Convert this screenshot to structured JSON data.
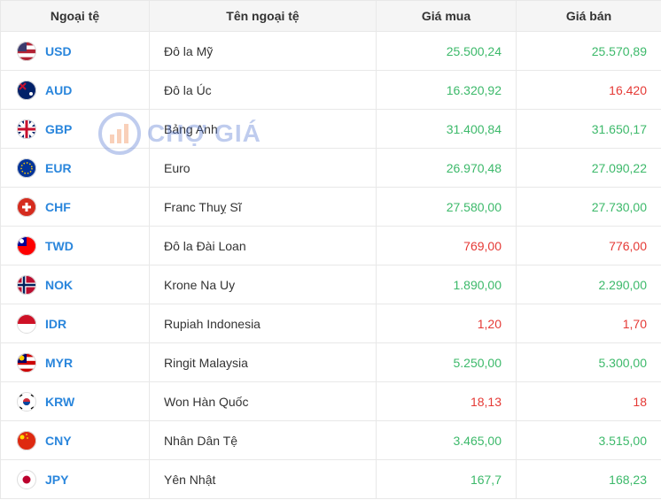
{
  "watermark": "CHỢ GIÁ",
  "table": {
    "header": [
      "Ngoại tệ",
      "Tên ngoại tệ",
      "Giá mua",
      "Giá bán"
    ],
    "rows": [
      {
        "code": "USD",
        "name": "Đô la Mỹ",
        "buy": "25.500,24",
        "sell": "25.570,89",
        "buy_color": "#3cb96a",
        "sell_color": "#3cb96a"
      },
      {
        "code": "AUD",
        "name": "Đô la Úc",
        "buy": "16.320,92",
        "sell": "16.420",
        "buy_color": "#3cb96a",
        "sell_color": "#e53935"
      },
      {
        "code": "GBP",
        "name": "Bảng Anh",
        "buy": "31.400,84",
        "sell": "31.650,17",
        "buy_color": "#3cb96a",
        "sell_color": "#3cb96a"
      },
      {
        "code": "EUR",
        "name": "Euro",
        "buy": "26.970,48",
        "sell": "27.090,22",
        "buy_color": "#3cb96a",
        "sell_color": "#3cb96a"
      },
      {
        "code": "CHF",
        "name": "Franc Thuỵ Sĩ",
        "buy": "27.580,00",
        "sell": "27.730,00",
        "buy_color": "#3cb96a",
        "sell_color": "#3cb96a"
      },
      {
        "code": "TWD",
        "name": "Đô la Đài Loan",
        "buy": "769,00",
        "sell": "776,00",
        "buy_color": "#e53935",
        "sell_color": "#e53935"
      },
      {
        "code": "NOK",
        "name": "Krone Na Uy",
        "buy": "1.890,00",
        "sell": "2.290,00",
        "buy_color": "#3cb96a",
        "sell_color": "#3cb96a"
      },
      {
        "code": "IDR",
        "name": "Rupiah Indonesia",
        "buy": "1,20",
        "sell": "1,70",
        "buy_color": "#e53935",
        "sell_color": "#e53935"
      },
      {
        "code": "MYR",
        "name": "Ringit Malaysia",
        "buy": "5.250,00",
        "sell": "5.300,00",
        "buy_color": "#3cb96a",
        "sell_color": "#3cb96a"
      },
      {
        "code": "KRW",
        "name": "Won Hàn Quốc",
        "buy": "18,13",
        "sell": "18",
        "buy_color": "#e53935",
        "sell_color": "#e53935"
      },
      {
        "code": "CNY",
        "name": "Nhân Dân Tệ",
        "buy": "3.465,00",
        "sell": "3.515,00",
        "buy_color": "#3cb96a",
        "sell_color": "#3cb96a"
      },
      {
        "code": "JPY",
        "name": "Yên Nhật",
        "buy": "167,7",
        "sell": "168,23",
        "buy_color": "#3cb96a",
        "sell_color": "#3cb96a"
      }
    ]
  }
}
